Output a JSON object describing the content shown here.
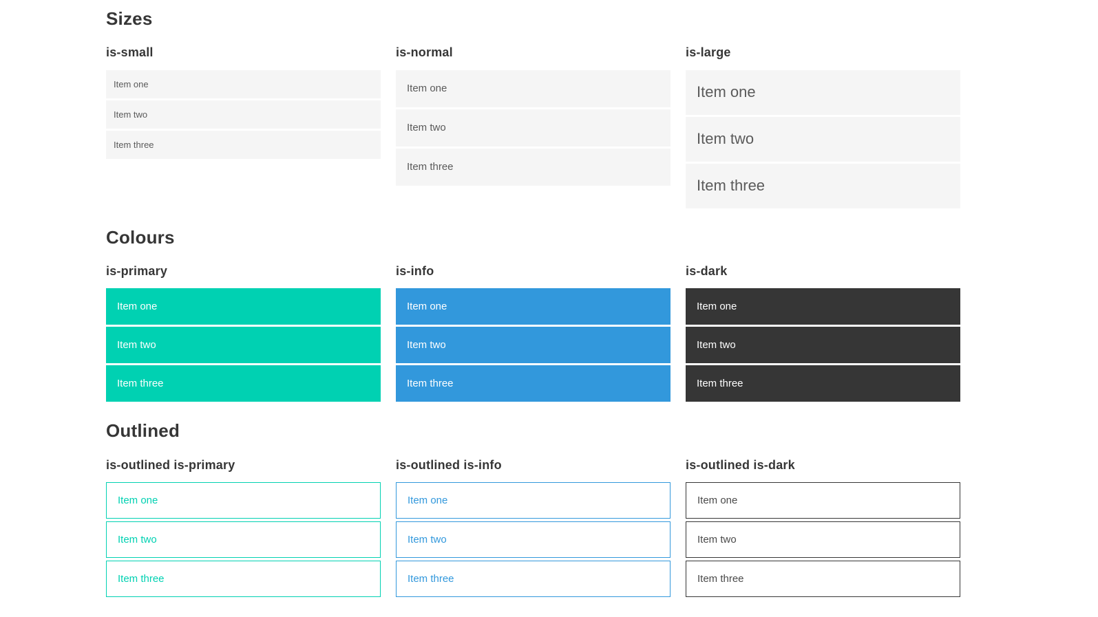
{
  "colors": {
    "primary": "#00d1b2",
    "info": "#3298dc",
    "dark": "#363636",
    "light_bg": "#f5f5f5",
    "heading": "#363636",
    "body_text": "#5a5a5a"
  },
  "sections": [
    {
      "title": "Sizes",
      "groups": [
        {
          "label": "is-small",
          "items": [
            "Item one",
            "Item two",
            "Item three"
          ]
        },
        {
          "label": "is-normal",
          "items": [
            "Item one",
            "Item two",
            "Item three"
          ]
        },
        {
          "label": "is-large",
          "items": [
            "Item one",
            "Item two",
            "Item three"
          ]
        }
      ]
    },
    {
      "title": "Colours",
      "groups": [
        {
          "label": "is-primary",
          "items": [
            "Item one",
            "Item two",
            "Item three"
          ]
        },
        {
          "label": "is-info",
          "items": [
            "Item one",
            "Item two",
            "Item three"
          ]
        },
        {
          "label": "is-dark",
          "items": [
            "Item one",
            "Item two",
            "Item three"
          ]
        }
      ]
    },
    {
      "title": "Outlined",
      "groups": [
        {
          "label": "is-outlined is-primary",
          "items": [
            "Item one",
            "Item two",
            "Item three"
          ]
        },
        {
          "label": "is-outlined is-info",
          "items": [
            "Item one",
            "Item two",
            "Item three"
          ]
        },
        {
          "label": "is-outlined is-dark",
          "items": [
            "Item one",
            "Item two",
            "Item three"
          ]
        }
      ]
    }
  ]
}
